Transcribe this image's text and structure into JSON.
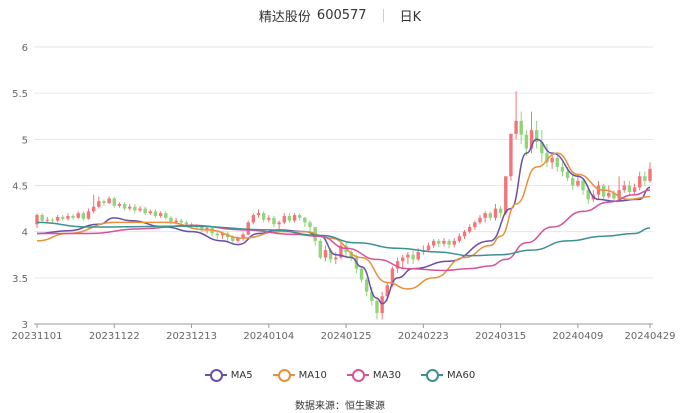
{
  "header": {
    "stock_name": "精达股份",
    "stock_code": "600577",
    "period": "日K"
  },
  "source": {
    "label": "数据来源：",
    "value": "恒生聚源"
  },
  "colors": {
    "up": "#f4747a",
    "down": "#91d57a",
    "MA5": "#6a4fa8",
    "MA10": "#e8913c",
    "MA30": "#d6529b",
    "MA60": "#3c9290"
  },
  "chart_data": {
    "type": "candlestick",
    "ylim": [
      3,
      6
    ],
    "yticks": [
      "3",
      "3.5",
      "4",
      "4.5",
      "5",
      "5.5",
      "6"
    ],
    "xticks": [
      "20231101",
      "20231122",
      "20231213",
      "20240104",
      "20240125",
      "20240223",
      "20240315",
      "20240409",
      "20240429"
    ],
    "xtick_index": [
      0,
      15,
      30,
      45,
      60,
      75,
      90,
      105,
      119
    ],
    "legend": [
      "MA5",
      "MA10",
      "MA30",
      "MA60"
    ],
    "candles": [
      [
        4.08,
        4.18,
        4.2,
        4.04
      ],
      [
        4.18,
        4.12,
        4.2,
        4.1
      ],
      [
        4.12,
        4.13,
        4.16,
        4.1
      ],
      [
        4.13,
        4.12,
        4.15,
        4.1
      ],
      [
        4.12,
        4.16,
        4.18,
        4.1
      ],
      [
        4.16,
        4.14,
        4.18,
        4.12
      ],
      [
        4.14,
        4.17,
        4.2,
        4.12
      ],
      [
        4.17,
        4.15,
        4.19,
        4.13
      ],
      [
        4.15,
        4.2,
        4.22,
        4.14
      ],
      [
        4.2,
        4.14,
        4.22,
        4.12
      ],
      [
        4.14,
        4.22,
        4.25,
        4.13
      ],
      [
        4.22,
        4.27,
        4.4,
        4.2
      ],
      [
        4.27,
        4.33,
        4.38,
        4.25
      ],
      [
        4.33,
        4.31,
        4.35,
        4.28
      ],
      [
        4.31,
        4.36,
        4.38,
        4.3
      ],
      [
        4.36,
        4.28,
        4.38,
        4.26
      ],
      [
        4.28,
        4.3,
        4.32,
        4.26
      ],
      [
        4.3,
        4.25,
        4.32,
        4.23
      ],
      [
        4.25,
        4.27,
        4.3,
        4.23
      ],
      [
        4.27,
        4.23,
        4.3,
        4.2
      ],
      [
        4.23,
        4.25,
        4.28,
        4.21
      ],
      [
        4.25,
        4.2,
        4.27,
        4.18
      ],
      [
        4.2,
        4.22,
        4.24,
        4.18
      ],
      [
        4.22,
        4.17,
        4.24,
        4.15
      ],
      [
        4.17,
        4.2,
        4.22,
        4.15
      ],
      [
        4.2,
        4.15,
        4.22,
        4.13
      ],
      [
        4.15,
        4.1,
        4.17,
        4.08
      ],
      [
        4.1,
        4.12,
        4.15,
        4.08
      ],
      [
        4.12,
        4.1,
        4.14,
        4.08
      ],
      [
        4.1,
        4.08,
        4.12,
        4.06
      ],
      [
        4.08,
        4.06,
        4.1,
        4.04
      ],
      [
        4.06,
        4.05,
        4.08,
        4.02
      ],
      [
        4.05,
        4.02,
        4.07,
        4.0
      ],
      [
        4.02,
        4.04,
        4.06,
        3.98
      ],
      [
        4.04,
        3.98,
        4.05,
        3.95
      ],
      [
        3.98,
        3.96,
        4.0,
        3.92
      ],
      [
        3.96,
        3.98,
        4.0,
        3.92
      ],
      [
        3.98,
        3.94,
        4.0,
        3.9
      ],
      [
        3.94,
        3.9,
        3.96,
        3.88
      ],
      [
        3.9,
        3.93,
        3.95,
        3.88
      ],
      [
        3.93,
        3.97,
        3.99,
        3.9
      ],
      [
        3.97,
        4.1,
        4.12,
        3.96
      ],
      [
        4.1,
        4.18,
        4.2,
        4.08
      ],
      [
        4.18,
        4.2,
        4.24,
        4.15
      ],
      [
        4.2,
        4.13,
        4.22,
        4.1
      ],
      [
        4.13,
        4.15,
        4.18,
        4.1
      ],
      [
        4.15,
        4.08,
        4.17,
        4.05
      ],
      [
        4.08,
        4.1,
        4.12,
        4.03
      ],
      [
        4.1,
        4.17,
        4.2,
        4.08
      ],
      [
        4.17,
        4.12,
        4.2,
        4.1
      ],
      [
        4.12,
        4.18,
        4.2,
        4.1
      ],
      [
        4.18,
        4.15,
        4.2,
        4.12
      ],
      [
        4.15,
        4.1,
        4.16,
        4.05
      ],
      [
        4.1,
        4.05,
        4.12,
        3.98
      ],
      [
        4.05,
        3.9,
        4.05,
        3.85
      ],
      [
        3.9,
        3.72,
        3.92,
        3.7
      ],
      [
        3.72,
        3.8,
        3.85,
        3.68
      ],
      [
        3.8,
        3.7,
        3.82,
        3.66
      ],
      [
        3.7,
        3.72,
        3.78,
        3.65
      ],
      [
        3.72,
        3.85,
        3.88,
        3.7
      ],
      [
        3.85,
        3.78,
        3.88,
        3.72
      ],
      [
        3.78,
        3.72,
        3.8,
        3.68
      ],
      [
        3.72,
        3.6,
        3.75,
        3.55
      ],
      [
        3.6,
        3.48,
        3.62,
        3.45
      ],
      [
        3.48,
        3.35,
        3.5,
        3.3
      ],
      [
        3.35,
        3.25,
        3.4,
        3.2
      ],
      [
        3.25,
        3.12,
        3.28,
        3.05
      ],
      [
        3.12,
        3.3,
        3.35,
        3.05
      ],
      [
        3.3,
        3.42,
        3.45,
        3.25
      ],
      [
        3.42,
        3.6,
        3.62,
        3.4
      ],
      [
        3.6,
        3.68,
        3.72,
        3.55
      ],
      [
        3.68,
        3.72,
        3.75,
        3.6
      ],
      [
        3.72,
        3.75,
        3.78,
        3.65
      ],
      [
        3.75,
        3.7,
        3.8,
        3.65
      ],
      [
        3.7,
        3.78,
        3.82,
        3.68
      ],
      [
        3.78,
        3.8,
        3.85,
        3.75
      ],
      [
        3.8,
        3.85,
        3.88,
        3.78
      ],
      [
        3.85,
        3.9,
        3.92,
        3.82
      ],
      [
        3.9,
        3.87,
        3.92,
        3.83
      ],
      [
        3.87,
        3.9,
        3.93,
        3.84
      ],
      [
        3.9,
        3.86,
        3.92,
        3.82
      ],
      [
        3.86,
        3.9,
        3.93,
        3.83
      ],
      [
        3.9,
        3.95,
        3.98,
        3.88
      ],
      [
        3.95,
        4.0,
        4.02,
        3.92
      ],
      [
        4.0,
        4.05,
        4.08,
        3.98
      ],
      [
        4.05,
        4.1,
        4.12,
        4.02
      ],
      [
        4.1,
        4.15,
        4.18,
        4.08
      ],
      [
        4.15,
        4.2,
        4.22,
        4.1
      ],
      [
        4.2,
        4.15,
        4.22,
        4.12
      ],
      [
        4.15,
        4.25,
        4.3,
        4.12
      ],
      [
        4.25,
        4.2,
        4.28,
        4.15
      ],
      [
        4.2,
        4.6,
        4.6,
        4.18
      ],
      [
        4.6,
        5.06,
        5.06,
        4.55
      ],
      [
        5.06,
        5.2,
        5.52,
        5.0
      ],
      [
        5.2,
        5.05,
        5.3,
        4.95
      ],
      [
        5.05,
        4.9,
        5.1,
        4.82
      ],
      [
        4.9,
        5.1,
        5.3,
        4.85
      ],
      [
        5.1,
        4.97,
        5.2,
        4.9
      ],
      [
        4.97,
        4.85,
        5.1,
        4.75
      ],
      [
        4.85,
        4.75,
        4.95,
        4.7
      ],
      [
        4.75,
        4.8,
        4.85,
        4.68
      ],
      [
        4.8,
        4.7,
        4.82,
        4.65
      ],
      [
        4.7,
        4.65,
        4.75,
        4.6
      ],
      [
        4.65,
        4.58,
        4.7,
        4.55
      ],
      [
        4.58,
        4.5,
        4.62,
        4.45
      ],
      [
        4.5,
        4.55,
        4.62,
        4.48
      ],
      [
        4.55,
        4.45,
        4.58,
        4.4
      ],
      [
        4.45,
        4.35,
        4.5,
        4.3
      ],
      [
        4.35,
        4.4,
        4.45,
        4.32
      ],
      [
        4.4,
        4.5,
        4.55,
        4.35
      ],
      [
        4.5,
        4.38,
        4.52,
        4.35
      ],
      [
        4.38,
        4.42,
        4.5,
        4.36
      ],
      [
        4.42,
        4.36,
        4.45,
        4.33
      ],
      [
        4.36,
        4.45,
        4.6,
        4.35
      ],
      [
        4.45,
        4.5,
        4.55,
        4.42
      ],
      [
        4.5,
        4.43,
        4.55,
        4.4
      ],
      [
        4.43,
        4.48,
        4.52,
        4.4
      ],
      [
        4.48,
        4.6,
        4.65,
        4.45
      ],
      [
        4.6,
        4.55,
        4.65,
        4.5
      ],
      [
        4.55,
        4.68,
        4.75,
        4.53
      ]
    ],
    "ma": {
      "MA5": [
        [
          0,
          3.98
        ],
        [
          6,
          4.01
        ],
        [
          12,
          4.08
        ],
        [
          15,
          4.15
        ],
        [
          18,
          4.12
        ],
        [
          25,
          4.05
        ],
        [
          30,
          4.0
        ],
        [
          36,
          3.9
        ],
        [
          39,
          3.86
        ],
        [
          43,
          3.98
        ],
        [
          47,
          4.02
        ],
        [
          52,
          4.0
        ],
        [
          55,
          3.95
        ],
        [
          58,
          3.75
        ],
        [
          61,
          3.72
        ],
        [
          63,
          3.62
        ],
        [
          66,
          3.28
        ],
        [
          67,
          3.22
        ],
        [
          70,
          3.5
        ],
        [
          73,
          3.6
        ],
        [
          80,
          3.68
        ],
        [
          88,
          3.9
        ],
        [
          92,
          4.25
        ],
        [
          95,
          4.85
        ],
        [
          97,
          5.0
        ],
        [
          100,
          4.85
        ],
        [
          105,
          4.6
        ],
        [
          109,
          4.35
        ],
        [
          112,
          4.33
        ],
        [
          117,
          4.35
        ],
        [
          119,
          4.48
        ]
      ],
      "MA10": [
        [
          0,
          3.9
        ],
        [
          6,
          3.98
        ],
        [
          15,
          4.1
        ],
        [
          25,
          4.1
        ],
        [
          33,
          4.02
        ],
        [
          40,
          3.93
        ],
        [
          47,
          4.0
        ],
        [
          52,
          4.0
        ],
        [
          57,
          3.93
        ],
        [
          63,
          3.72
        ],
        [
          68,
          3.45
        ],
        [
          72,
          3.38
        ],
        [
          77,
          3.5
        ],
        [
          83,
          3.72
        ],
        [
          88,
          3.85
        ],
        [
          90,
          3.95
        ],
        [
          93,
          4.3
        ],
        [
          97,
          4.7
        ],
        [
          101,
          4.85
        ],
        [
          105,
          4.62
        ],
        [
          110,
          4.45
        ],
        [
          115,
          4.35
        ],
        [
          119,
          4.38
        ]
      ],
      "MA30": [
        [
          0,
          3.98
        ],
        [
          10,
          3.98
        ],
        [
          20,
          4.03
        ],
        [
          30,
          4.07
        ],
        [
          40,
          4.02
        ],
        [
          50,
          3.97
        ],
        [
          55,
          3.95
        ],
        [
          60,
          3.82
        ],
        [
          66,
          3.7
        ],
        [
          72,
          3.6
        ],
        [
          79,
          3.58
        ],
        [
          84,
          3.6
        ],
        [
          88,
          3.63
        ],
        [
          91,
          3.7
        ],
        [
          95,
          3.88
        ],
        [
          100,
          4.05
        ],
        [
          106,
          4.22
        ],
        [
          111,
          4.32
        ],
        [
          116,
          4.4
        ],
        [
          119,
          4.45
        ]
      ],
      "MA60": [
        [
          0,
          4.1
        ],
        [
          10,
          4.05
        ],
        [
          30,
          4.06
        ],
        [
          45,
          4.02
        ],
        [
          55,
          3.96
        ],
        [
          62,
          3.88
        ],
        [
          70,
          3.82
        ],
        [
          78,
          3.78
        ],
        [
          84,
          3.74
        ],
        [
          90,
          3.75
        ],
        [
          96,
          3.8
        ],
        [
          103,
          3.9
        ],
        [
          110,
          3.95
        ],
        [
          116,
          3.98
        ],
        [
          119,
          4.04
        ]
      ]
    }
  }
}
